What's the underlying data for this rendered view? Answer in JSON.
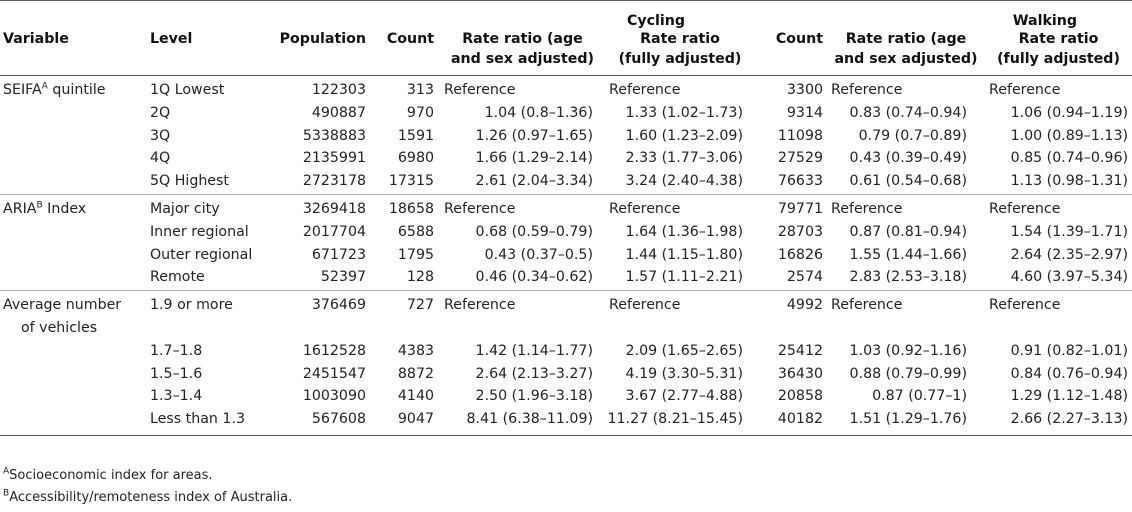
{
  "table": {
    "group_headers": {
      "cycling": "Cycling",
      "walking": "Walking"
    },
    "columns": {
      "variable": "Variable",
      "level": "Level",
      "population": "Population",
      "count_cycling": "Count",
      "rr_age_sex_cycling": [
        "Rate ratio (age",
        "and sex adjusted)"
      ],
      "rr_full_cycling": [
        "Rate ratio",
        "(fully adjusted)"
      ],
      "count_walking": "Count",
      "rr_age_sex_walking": [
        "Rate ratio (age",
        "and sex adjusted)"
      ],
      "rr_full_walking": [
        "Rate ratio",
        "(fully adjusted)"
      ]
    },
    "groups": [
      {
        "variable": "SEIFA",
        "sup": "A",
        "variable_suffix": " quintile",
        "rows": [
          {
            "level": "1Q Lowest",
            "population": "122303",
            "c_count": "313",
            "c_rr1": "Reference",
            "c_rr2": "Reference",
            "w_count": "3300",
            "w_rr1": "Reference",
            "w_rr2": "Reference"
          },
          {
            "level": "2Q",
            "population": "490887",
            "c_count": "970",
            "c_rr1": "1.04 (0.8–1.36)",
            "c_rr2": "1.33 (1.02–1.73)",
            "w_count": "9314",
            "w_rr1": "0.83 (0.74–0.94)",
            "w_rr2": "1.06 (0.94–1.19)"
          },
          {
            "level": "3Q",
            "population": "5338883",
            "c_count": "1591",
            "c_rr1": "1.26 (0.97–1.65)",
            "c_rr2": "1.60 (1.23–2.09)",
            "w_count": "11098",
            "w_rr1": "0.79 (0.7–0.89)",
            "w_rr2": "1.00 (0.89–1.13)"
          },
          {
            "level": "4Q",
            "population": "2135991",
            "c_count": "6980",
            "c_rr1": "1.66 (1.29–2.14)",
            "c_rr2": "2.33 (1.77–3.06)",
            "w_count": "27529",
            "w_rr1": "0.43 (0.39–0.49)",
            "w_rr2": "0.85 (0.74–0.96)"
          },
          {
            "level": "5Q Highest",
            "population": "2723178",
            "c_count": "17315",
            "c_rr1": "2.61 (2.04–3.34)",
            "c_rr2": "3.24 (2.40–4.38)",
            "w_count": "76633",
            "w_rr1": "0.61 (0.54–0.68)",
            "w_rr2": "1.13 (0.98–1.31)"
          }
        ]
      },
      {
        "variable": "ARIA",
        "sup": "B",
        "variable_suffix": " Index",
        "rows": [
          {
            "level": "Major city",
            "population": "3269418",
            "c_count": "18658",
            "c_rr1": "Reference",
            "c_rr2": "Reference",
            "w_count": "79771",
            "w_rr1": "Reference",
            "w_rr2": "Reference"
          },
          {
            "level": "Inner regional",
            "population": "2017704",
            "c_count": "6588",
            "c_rr1": "0.68 (0.59–0.79)",
            "c_rr2": "1.64 (1.36–1.98)",
            "w_count": "28703",
            "w_rr1": "0.87 (0.81–0.94)",
            "w_rr2": "1.54 (1.39–1.71)"
          },
          {
            "level": "Outer regional",
            "population": "671723",
            "c_count": "1795",
            "c_rr1": "0.43 (0.37–0.5)",
            "c_rr2": "1.44 (1.15–1.80)",
            "w_count": "16826",
            "w_rr1": "1.55 (1.44–1.66)",
            "w_rr2": "2.64 (2.35–2.97)"
          },
          {
            "level": "Remote",
            "population": "52397",
            "c_count": "128",
            "c_rr1": "0.46 (0.34–0.62)",
            "c_rr2": "1.57 (1.11–2.21)",
            "w_count": "2574",
            "w_rr1": "2.83 (2.53–3.18)",
            "w_rr2": "4.60 (3.97–5.34)"
          }
        ]
      },
      {
        "variable": "Average number",
        "variable_line2": "of vehicles",
        "rows": [
          {
            "level": "1.9 or more",
            "population": "376469",
            "c_count": "727",
            "c_rr1": "Reference",
            "c_rr2": "Reference",
            "w_count": "4992",
            "w_rr1": "Reference",
            "w_rr2": "Reference"
          },
          {
            "level": "1.7–1.8",
            "population": "1612528",
            "c_count": "4383",
            "c_rr1": "1.42 (1.14–1.77)",
            "c_rr2": "2.09 (1.65–2.65)",
            "w_count": "25412",
            "w_rr1": "1.03 (0.92–1.16)",
            "w_rr2": "0.91 (0.82–1.01)"
          },
          {
            "level": "1.5–1.6",
            "population": "2451547",
            "c_count": "8872",
            "c_rr1": "2.64 (2.13–3.27)",
            "c_rr2": "4.19 (3.30–5.31)",
            "w_count": "36430",
            "w_rr1": "0.88 (0.79–0.99)",
            "w_rr2": "0.84 (0.76–0.94)"
          },
          {
            "level": "1.3–1.4",
            "population": "1003090",
            "c_count": "4140",
            "c_rr1": "2.50 (1.96–3.18)",
            "c_rr2": "3.67 (2.77–4.88)",
            "w_count": "20858",
            "w_rr1": "0.87 (0.77–1)",
            "w_rr2": "1.29 (1.12–1.48)"
          },
          {
            "level": "Less than 1.3",
            "population": "567608",
            "c_count": "9047",
            "c_rr1": "8.41 (6.38–11.09)",
            "c_rr2": "11.27 (8.21–15.45)",
            "w_count": "40182",
            "w_rr1": "1.51 (1.29–1.76)",
            "w_rr2": "2.66 (2.27–3.13)"
          }
        ]
      }
    ]
  },
  "footnotes": [
    {
      "sup": "A",
      "text": "Socioeconomic index for areas."
    },
    {
      "sup": "B",
      "text": "Accessibility/remoteness index of Australia."
    }
  ]
}
